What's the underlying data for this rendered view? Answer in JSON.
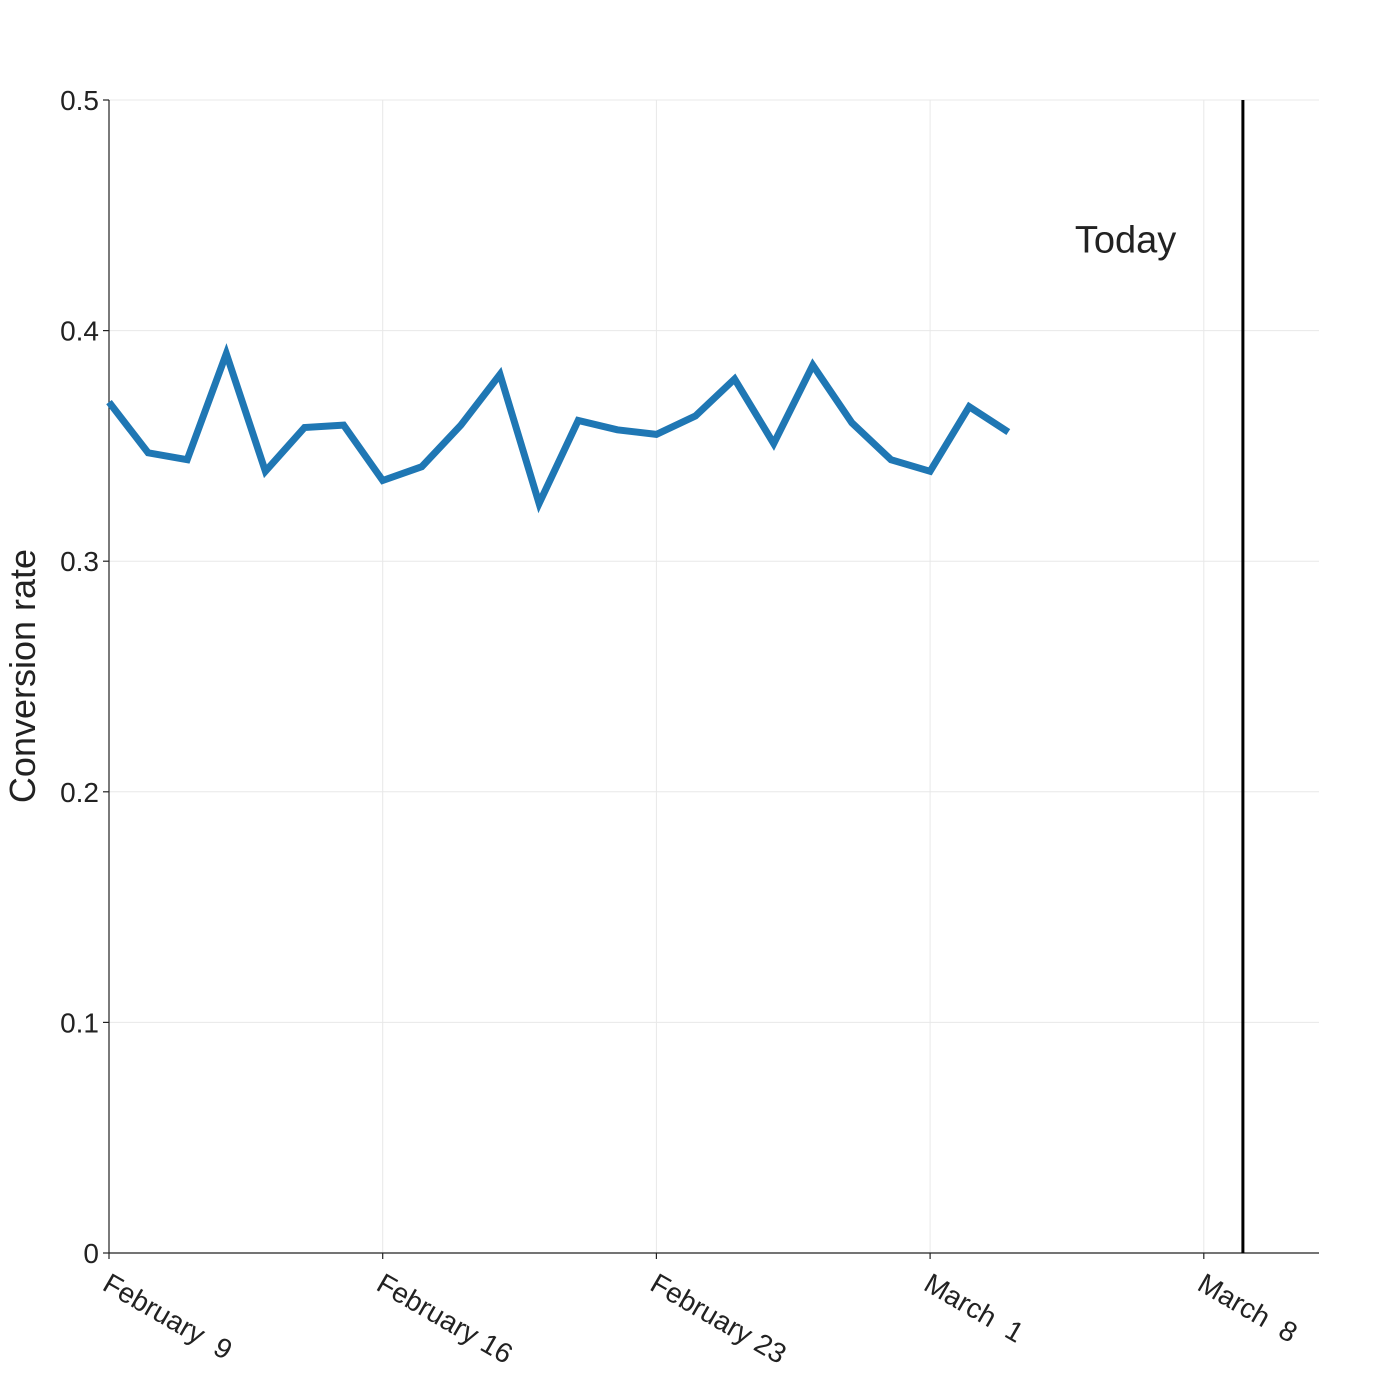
{
  "chart_data": {
    "type": "line",
    "ylabel": "Conversion rate",
    "xlabel": "",
    "title": "",
    "ylim": [
      0,
      0.5
    ],
    "xlim": [
      "2020-02-09",
      "2020-03-11"
    ],
    "x_ticks": [
      {
        "date": "2020-02-09",
        "label": "February  9"
      },
      {
        "date": "2020-02-16",
        "label": "February 16"
      },
      {
        "date": "2020-02-23",
        "label": "February 23"
      },
      {
        "date": "2020-03-01",
        "label": "March  1"
      },
      {
        "date": "2020-03-08",
        "label": "March  8"
      }
    ],
    "y_ticks": [
      {
        "value": 0,
        "label": "0"
      },
      {
        "value": 0.1,
        "label": "0.1"
      },
      {
        "value": 0.2,
        "label": "0.2"
      },
      {
        "value": 0.3,
        "label": "0.3"
      },
      {
        "value": 0.4,
        "label": "0.4"
      },
      {
        "value": 0.5,
        "label": "0.5"
      }
    ],
    "grid": true,
    "series": [
      {
        "color": "#1f77b4",
        "x": [
          "2020-02-09",
          "2020-02-10",
          "2020-02-11",
          "2020-02-12",
          "2020-02-13",
          "2020-02-14",
          "2020-02-15",
          "2020-02-16",
          "2020-02-17",
          "2020-02-18",
          "2020-02-19",
          "2020-02-20",
          "2020-02-21",
          "2020-02-22",
          "2020-02-23",
          "2020-02-24",
          "2020-02-25",
          "2020-02-26",
          "2020-02-27",
          "2020-02-28",
          "2020-02-29",
          "2020-03-01",
          "2020-03-02",
          "2020-03-03"
        ],
        "y": [
          0.369,
          0.347,
          0.344,
          0.39,
          0.339,
          0.358,
          0.359,
          0.335,
          0.341,
          0.359,
          0.381,
          0.325,
          0.361,
          0.357,
          0.355,
          0.363,
          0.379,
          0.351,
          0.385,
          0.36,
          0.344,
          0.339,
          0.367,
          0.356
        ]
      }
    ],
    "annotations": [
      {
        "type": "vline",
        "date": "2020-03-09",
        "color": "#000000"
      },
      {
        "type": "text",
        "text": "Today",
        "date": "2020-03-06",
        "value": 0.44
      }
    ]
  }
}
